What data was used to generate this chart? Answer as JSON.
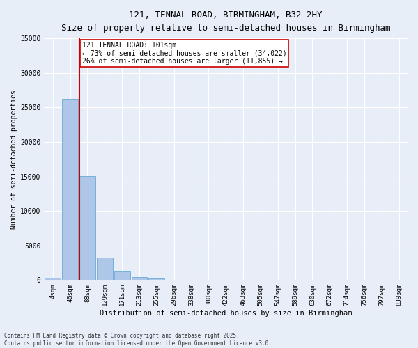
{
  "title_line1": "121, TENNAL ROAD, BIRMINGHAM, B32 2HY",
  "title_line2": "Size of property relative to semi-detached houses in Birmingham",
  "xlabel": "Distribution of semi-detached houses by size in Birmingham",
  "ylabel": "Number of semi-detached properties",
  "annotation_title": "121 TENNAL ROAD: 101sqm",
  "annotation_line2": "← 73% of semi-detached houses are smaller (34,022)",
  "annotation_line3": "26% of semi-detached houses are larger (11,855) →",
  "footer_line1": "Contains HM Land Registry data © Crown copyright and database right 2025.",
  "footer_line2": "Contains public sector information licensed under the Open Government Licence v3.0.",
  "categories": [
    "4sqm",
    "46sqm",
    "88sqm",
    "129sqm",
    "171sqm",
    "213sqm",
    "255sqm",
    "296sqm",
    "338sqm",
    "380sqm",
    "422sqm",
    "463sqm",
    "505sqm",
    "547sqm",
    "589sqm",
    "630sqm",
    "672sqm",
    "714sqm",
    "756sqm",
    "797sqm",
    "839sqm"
  ],
  "values": [
    350,
    26200,
    15100,
    3300,
    1200,
    420,
    200,
    50,
    0,
    0,
    0,
    0,
    0,
    0,
    0,
    0,
    0,
    0,
    0,
    0,
    0
  ],
  "bar_color": "#aec6e8",
  "bar_edge_color": "#6aaad4",
  "vline_color": "#cc0000",
  "annotation_box_color": "#cc0000",
  "annotation_bg": "#ffffff",
  "background_color": "#e8eef8",
  "grid_color": "#ffffff",
  "ylim": [
    0,
    35000
  ],
  "yticks": [
    0,
    5000,
    10000,
    15000,
    20000,
    25000,
    30000,
    35000
  ],
  "ytick_labels": [
    "0",
    "5000",
    "10000",
    "15000",
    "20000",
    "25000",
    "30000",
    "35000"
  ]
}
